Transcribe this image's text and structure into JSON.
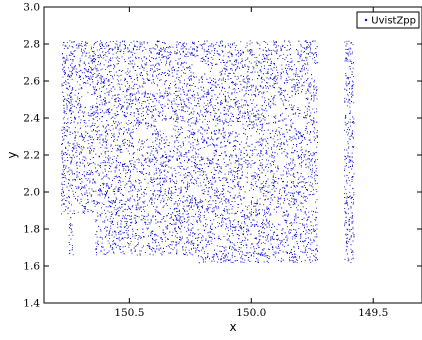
{
  "chart_data": {
    "type": "scatter",
    "title": "",
    "xlabel": "x",
    "ylabel": "y",
    "x_inverted": true,
    "xlim": [
      150.85,
      149.3
    ],
    "ylim": [
      1.4,
      3.0
    ],
    "x_ticks": [
      150.5,
      150.0,
      149.5
    ],
    "x_tick_labels": [
      "150.5",
      "150.0",
      "149.5"
    ],
    "y_ticks": [
      1.4,
      1.6,
      1.8,
      2.0,
      2.2,
      2.4,
      2.6,
      2.8,
      3.0
    ],
    "y_tick_labels": [
      "1.4",
      "1.6",
      "1.8",
      "2.0",
      "2.2",
      "2.4",
      "2.6",
      "2.8",
      "3.0"
    ],
    "grid": false,
    "legend_position": "top-right",
    "series": [
      {
        "name": "UvistZpp",
        "color": "#0000cc",
        "marker": "dot",
        "density_description": "uniform survey footprint",
        "footprint": [
          {
            "x": [
              150.78,
              150.22
            ],
            "y": [
              1.88,
              2.82
            ]
          },
          {
            "x": [
              150.22,
              149.73
            ],
            "y": [
              1.62,
              2.82
            ]
          },
          {
            "x": [
              150.75,
              150.22
            ],
            "y": [
              1.66,
              1.88
            ]
          }
        ],
        "gaps": [
          {
            "x": [
              150.73,
              150.64
            ],
            "y": [
              1.62,
              1.88
            ]
          },
          {
            "x": [
              149.66,
              149.62
            ],
            "y": [
              1.62,
              2.82
            ]
          }
        ],
        "strip": {
          "x": [
            149.65,
            149.58
          ],
          "y": [
            1.62,
            2.82
          ]
        },
        "holes": [
          {
            "x": 150.67,
            "y": 2.5,
            "r": 0.03
          },
          {
            "x": 150.53,
            "y": 2.68,
            "r": 0.02
          },
          {
            "x": 150.41,
            "y": 2.56,
            "r": 0.025
          },
          {
            "x": 150.21,
            "y": 2.67,
            "r": 0.03
          },
          {
            "x": 150.15,
            "y": 2.64,
            "r": 0.02
          },
          {
            "x": 149.9,
            "y": 2.44,
            "r": 0.025
          },
          {
            "x": 149.81,
            "y": 2.5,
            "r": 0.03
          },
          {
            "x": 150.45,
            "y": 2.32,
            "r": 0.03
          },
          {
            "x": 150.52,
            "y": 2.19,
            "r": 0.025
          },
          {
            "x": 150.36,
            "y": 2.36,
            "r": 0.03
          },
          {
            "x": 150.06,
            "y": 2.35,
            "r": 0.025
          },
          {
            "x": 149.8,
            "y": 2.37,
            "r": 0.025
          },
          {
            "x": 150.47,
            "y": 2.09,
            "r": 0.02
          },
          {
            "x": 150.19,
            "y": 2.22,
            "r": 0.02
          },
          {
            "x": 149.88,
            "y": 2.18,
            "r": 0.025
          },
          {
            "x": 150.23,
            "y": 2.0,
            "r": 0.02
          },
          {
            "x": 150.42,
            "y": 1.91,
            "r": 0.02
          },
          {
            "x": 149.98,
            "y": 1.99,
            "r": 0.02
          },
          {
            "x": 150.14,
            "y": 1.79,
            "r": 0.02
          },
          {
            "x": 149.9,
            "y": 1.86,
            "r": 0.025
          },
          {
            "x": 149.75,
            "y": 1.93,
            "r": 0.02
          },
          {
            "x": 150.71,
            "y": 1.8,
            "r": 0.02
          }
        ]
      }
    ]
  }
}
